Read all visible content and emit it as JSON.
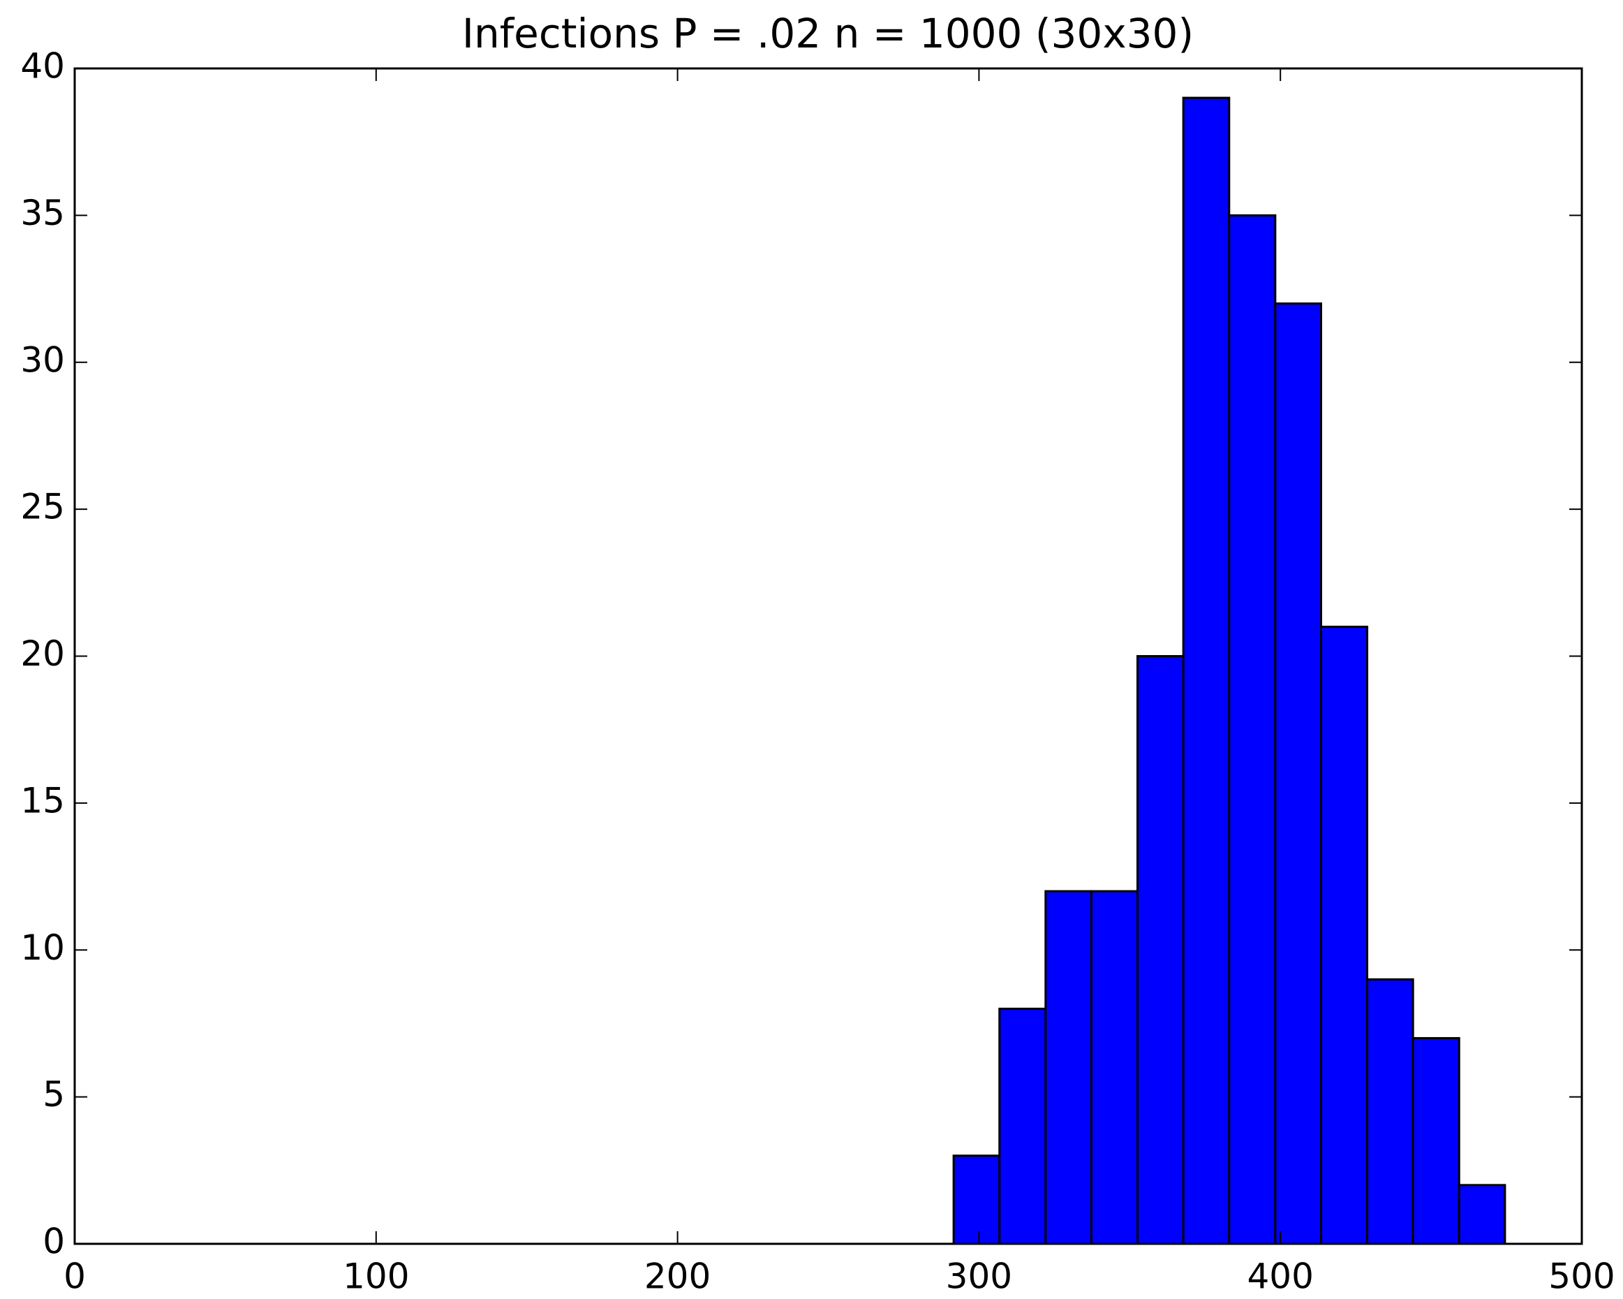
{
  "chart_data": {
    "type": "histogram",
    "title": "Infections P = .02 n = 1000 (30x30)",
    "bins": [
      291.6,
      306.8,
      322.1,
      337.3,
      352.6,
      367.8,
      383.0,
      398.3,
      413.5,
      428.8,
      444.0,
      459.3,
      474.5
    ],
    "values": [
      3,
      8,
      12,
      12,
      20,
      39,
      35,
      32,
      21,
      9,
      7,
      2
    ],
    "color": "#0000ff",
    "xlim": [
      0,
      500
    ],
    "xticks": [
      0,
      100,
      200,
      300,
      400,
      500
    ],
    "ylim": [
      0,
      40
    ],
    "yticks": [
      0,
      5,
      10,
      15,
      20,
      25,
      30,
      35,
      40
    ],
    "grid": false
  }
}
